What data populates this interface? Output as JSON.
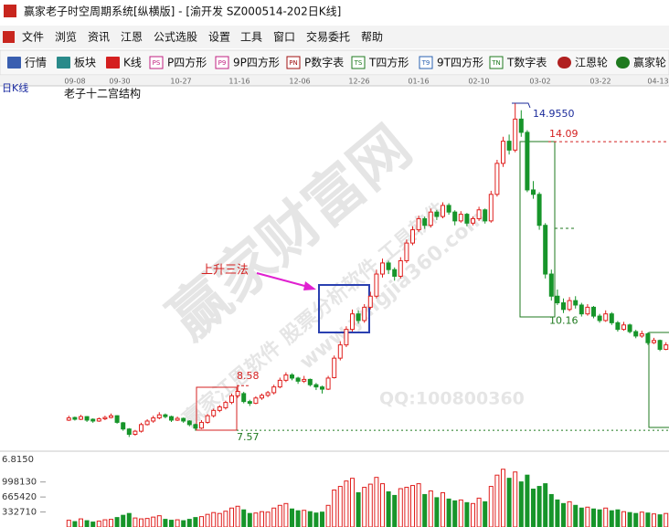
{
  "window": {
    "title": "赢家老子时空周期系统[纵横版] - [渝开发  SZ000514-202日K线]"
  },
  "menu": [
    "文件",
    "浏览",
    "资讯",
    "江恩",
    "公式选股",
    "设置",
    "工具",
    "窗口",
    "交易委托",
    "帮助"
  ],
  "toolbar": [
    {
      "label": "行情"
    },
    {
      "label": "板块"
    },
    {
      "label": "K线"
    },
    {
      "icon": "PS",
      "label": "P四方形"
    },
    {
      "icon": "P9",
      "label": "9P四方形"
    },
    {
      "icon": "PN",
      "label": "P数字表"
    },
    {
      "icon": "TS",
      "label": "T四方形"
    },
    {
      "icon": "T9",
      "label": "9T四方形"
    },
    {
      "icon": "TN",
      "label": "T数字表"
    },
    {
      "label": "江恩轮"
    },
    {
      "label": "赢家轮"
    }
  ],
  "chart_data": {
    "type": "candlestick",
    "period_label": "日K线",
    "structure_label": "老子十二宫结构",
    "annotation": "上升三法",
    "watermark": {
      "main": "赢家财富网",
      "sub": "赢家江恩软件 股票分析软件 工具软件",
      "url": "www.yingjia360.com",
      "qq": "QQ:100800360"
    },
    "date_axis": [
      "09-08",
      "09-30",
      "10-27",
      "11-16",
      "12-06",
      "12-26",
      "01-16",
      "02-10",
      "03-02",
      "03-22",
      "04-13"
    ],
    "up_color": "#e0201e",
    "down_color": "#17952a",
    "ylim": [
      7.14,
      15.33
    ],
    "candles": [
      [
        7.8,
        7.9,
        7.78,
        7.85
      ],
      [
        7.86,
        7.88,
        7.79,
        7.82
      ],
      [
        7.82,
        7.92,
        7.8,
        7.88
      ],
      [
        7.88,
        7.89,
        7.76,
        7.8
      ],
      [
        7.82,
        7.84,
        7.74,
        7.78
      ],
      [
        7.78,
        7.86,
        7.76,
        7.83
      ],
      [
        7.83,
        7.9,
        7.8,
        7.86
      ],
      [
        7.86,
        7.95,
        7.84,
        7.9
      ],
      [
        7.9,
        7.91,
        7.72,
        7.75
      ],
      [
        7.74,
        7.76,
        7.56,
        7.6
      ],
      [
        7.6,
        7.62,
        7.42,
        7.48
      ],
      [
        7.48,
        7.58,
        7.45,
        7.55
      ],
      [
        7.55,
        7.74,
        7.52,
        7.7
      ],
      [
        7.7,
        7.82,
        7.68,
        7.78
      ],
      [
        7.78,
        7.9,
        7.74,
        7.85
      ],
      [
        7.85,
        7.98,
        7.82,
        7.92
      ],
      [
        7.92,
        7.95,
        7.84,
        7.88
      ],
      [
        7.88,
        7.9,
        7.76,
        7.8
      ],
      [
        7.8,
        7.88,
        7.78,
        7.84
      ],
      [
        7.84,
        7.86,
        7.74,
        7.78
      ],
      [
        7.78,
        7.8,
        7.66,
        7.7
      ],
      [
        7.7,
        7.72,
        7.56,
        7.62
      ],
      [
        7.62,
        7.8,
        7.6,
        7.75
      ],
      [
        7.75,
        7.94,
        7.72,
        7.9
      ],
      [
        7.9,
        8.06,
        7.86,
        8.02
      ],
      [
        8.02,
        8.14,
        7.98,
        8.1
      ],
      [
        8.08,
        8.24,
        8.04,
        8.2
      ],
      [
        8.2,
        8.4,
        8.16,
        8.35
      ],
      [
        8.35,
        8.58,
        8.3,
        8.45
      ],
      [
        8.4,
        8.44,
        8.18,
        8.22
      ],
      [
        8.22,
        8.26,
        8.12,
        8.18
      ],
      [
        8.18,
        8.34,
        8.16,
        8.3
      ],
      [
        8.3,
        8.4,
        8.26,
        8.36
      ],
      [
        8.36,
        8.46,
        8.32,
        8.42
      ],
      [
        8.42,
        8.6,
        8.38,
        8.55
      ],
      [
        8.55,
        8.76,
        8.52,
        8.7
      ],
      [
        8.7,
        8.88,
        8.66,
        8.82
      ],
      [
        8.82,
        8.86,
        8.7,
        8.75
      ],
      [
        8.75,
        8.78,
        8.62,
        8.68
      ],
      [
        8.68,
        8.8,
        8.64,
        8.72
      ],
      [
        8.72,
        8.74,
        8.56,
        8.6
      ],
      [
        8.6,
        8.64,
        8.48,
        8.55
      ],
      [
        8.55,
        8.58,
        8.4,
        8.5
      ],
      [
        8.5,
        8.8,
        8.48,
        8.75
      ],
      [
        8.76,
        9.26,
        8.74,
        9.2
      ],
      [
        9.2,
        9.58,
        9.15,
        9.5
      ],
      [
        9.5,
        9.92,
        9.45,
        9.85
      ],
      [
        9.85,
        10.3,
        9.8,
        10.2
      ],
      [
        10.2,
        10.28,
        9.98,
        10.05
      ],
      [
        10.05,
        10.42,
        10.0,
        10.35
      ],
      [
        10.35,
        10.7,
        10.3,
        10.6
      ],
      [
        10.6,
        11.2,
        10.55,
        11.1
      ],
      [
        11.1,
        11.45,
        11.02,
        11.35
      ],
      [
        11.35,
        11.4,
        11.1,
        11.2
      ],
      [
        11.2,
        11.25,
        10.95,
        11.05
      ],
      [
        11.05,
        11.48,
        11.0,
        11.4
      ],
      [
        11.4,
        11.88,
        11.35,
        11.8
      ],
      [
        11.8,
        12.18,
        11.75,
        12.1
      ],
      [
        12.1,
        12.42,
        12.05,
        12.35
      ],
      [
        12.35,
        12.4,
        12.12,
        12.2
      ],
      [
        12.2,
        12.58,
        12.15,
        12.5
      ],
      [
        12.5,
        12.55,
        12.32,
        12.4
      ],
      [
        12.4,
        12.72,
        12.36,
        12.65
      ],
      [
        12.65,
        12.7,
        12.44,
        12.5
      ],
      [
        12.5,
        12.54,
        12.2,
        12.3
      ],
      [
        12.3,
        12.52,
        12.26,
        12.45
      ],
      [
        12.45,
        12.48,
        12.18,
        12.25
      ],
      [
        12.25,
        12.4,
        12.2,
        12.35
      ],
      [
        12.35,
        12.62,
        12.3,
        12.55
      ],
      [
        12.55,
        12.58,
        12.24,
        12.3
      ],
      [
        12.3,
        12.98,
        12.26,
        12.9
      ],
      [
        12.9,
        13.68,
        12.85,
        13.6
      ],
      [
        13.6,
        14.2,
        13.52,
        14.1
      ],
      [
        14.1,
        14.25,
        13.8,
        13.9
      ],
      [
        13.9,
        14.955,
        13.85,
        14.6
      ],
      [
        14.6,
        14.8,
        14.2,
        14.3
      ],
      [
        14.3,
        14.35,
        12.95,
        13.0
      ],
      [
        13.0,
        13.2,
        12.8,
        12.9
      ],
      [
        12.9,
        12.95,
        12.1,
        12.2
      ],
      [
        12.2,
        12.25,
        11.0,
        11.1
      ],
      [
        11.1,
        11.2,
        10.5,
        10.6
      ],
      [
        10.6,
        10.75,
        10.4,
        10.45
      ],
      [
        10.45,
        10.55,
        10.22,
        10.3
      ],
      [
        10.3,
        10.58,
        10.26,
        10.5
      ],
      [
        10.5,
        10.6,
        10.32,
        10.4
      ],
      [
        10.4,
        10.45,
        10.14,
        10.2
      ],
      [
        10.2,
        10.42,
        10.16,
        10.35
      ],
      [
        10.35,
        10.38,
        10.1,
        10.15
      ],
      [
        10.15,
        10.2,
        10.0,
        10.05
      ],
      [
        10.05,
        10.28,
        10.02,
        10.2
      ],
      [
        10.2,
        10.24,
        9.95,
        10.0
      ],
      [
        10.0,
        10.04,
        9.8,
        9.85
      ],
      [
        9.85,
        10.02,
        9.82,
        9.95
      ],
      [
        9.95,
        9.98,
        9.76,
        9.8
      ],
      [
        9.8,
        9.84,
        9.65,
        9.7
      ],
      [
        9.7,
        9.82,
        9.66,
        9.75
      ],
      [
        9.75,
        9.78,
        9.5,
        9.55
      ],
      [
        9.55,
        9.66,
        9.52,
        9.6
      ],
      [
        9.6,
        9.62,
        9.36,
        9.4
      ],
      [
        9.4,
        9.56,
        9.38,
        9.5
      ]
    ],
    "levels": [
      {
        "value": 14.955,
        "label": "14.9550",
        "color": "#1a2a9a"
      },
      {
        "value": 14.09,
        "color": "#d42020"
      },
      {
        "value": 10.16,
        "color": "#1f7a1f"
      },
      {
        "value": 8.58,
        "color": "#d42020"
      },
      {
        "value": 7.57,
        "color": "#1f7a1f"
      }
    ],
    "volume": {
      "top_label": "6.8150",
      "ylim": [
        0,
        1620000
      ],
      "yticks": [
        332710,
        665420,
        998130
      ],
      "values": [
        150000,
        120000,
        180000,
        140000,
        110000,
        130000,
        160000,
        170000,
        210000,
        260000,
        300000,
        200000,
        180000,
        190000,
        220000,
        250000,
        170000,
        150000,
        160000,
        140000,
        170000,
        210000,
        230000,
        280000,
        320000,
        300000,
        350000,
        420000,
        460000,
        380000,
        300000,
        310000,
        340000,
        330000,
        420000,
        480000,
        520000,
        400000,
        360000,
        370000,
        340000,
        310000,
        330000,
        480000,
        820000,
        900000,
        1020000,
        1080000,
        760000,
        880000,
        950000,
        1100000,
        960000,
        780000,
        700000,
        850000,
        880000,
        920000,
        960000,
        720000,
        800000,
        650000,
        760000,
        620000,
        580000,
        600000,
        540000,
        520000,
        640000,
        560000,
        900000,
        1150000,
        1280000,
        1080000,
        1220000,
        1000000,
        1150000,
        840000,
        900000,
        960000,
        720000,
        600000,
        520000,
        560000,
        480000,
        420000,
        440000,
        400000,
        380000,
        420000,
        360000,
        380000,
        340000,
        320000,
        300000,
        330000,
        310000,
        290000,
        270000,
        300000
      ]
    }
  }
}
